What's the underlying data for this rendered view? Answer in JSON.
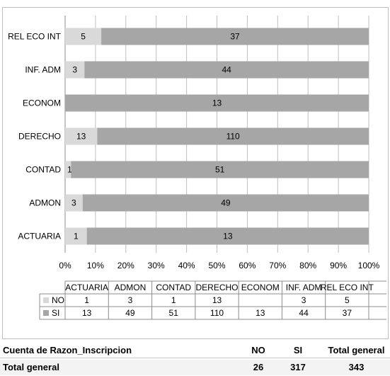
{
  "chart_data": {
    "type": "bar",
    "orientation": "horizontal",
    "stacking": "percent",
    "categories": [
      "ACTUARIA",
      "ADMON",
      "CONTAD",
      "DERECHO",
      "ECONOM",
      "INF. ADM",
      "REL ECO INT"
    ],
    "series": [
      {
        "name": "NO",
        "values": [
          1,
          3,
          1,
          13,
          null,
          3,
          5
        ],
        "color": "#d9d9d9"
      },
      {
        "name": "SI",
        "values": [
          13,
          49,
          51,
          110,
          13,
          44,
          37
        ],
        "color": "#a6a6a6"
      }
    ],
    "x_ticks": [
      "0%",
      "10%",
      "20%",
      "30%",
      "40%",
      "50%",
      "60%",
      "70%",
      "80%",
      "90%",
      "100%"
    ],
    "xlim": [
      0,
      100
    ],
    "grid": true,
    "data_table": true,
    "legend_position": "data-table"
  },
  "pivot": {
    "header": {
      "label": "Cuenta de Razon_Inscripcion",
      "no": "NO",
      "si": "SI",
      "total": "Total general"
    },
    "total_row": {
      "label": "Total general",
      "no": "26",
      "si": "317",
      "total": "343"
    }
  }
}
